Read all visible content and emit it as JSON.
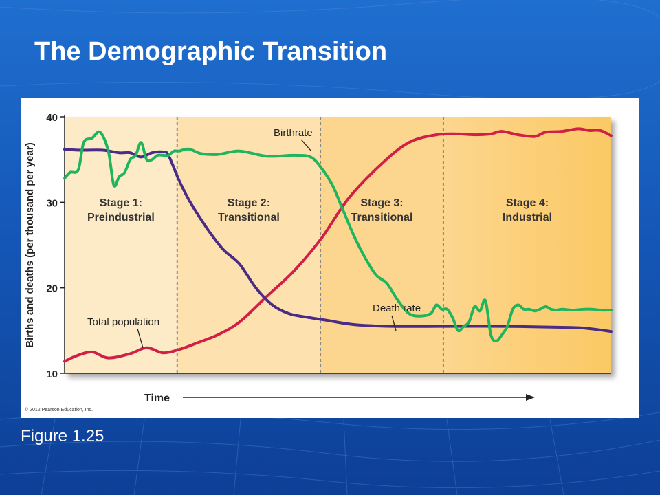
{
  "slide": {
    "title": "The Demographic Transition",
    "caption": "Figure 1.25"
  },
  "colors": {
    "background": "#1558b8",
    "stage1": "#fdebc8",
    "stage2": "#fde2b0",
    "stage3": "#fcd68f",
    "stage4": "#fbc964",
    "birthrate": "#1fb45e",
    "death_rate": "#4a2c86",
    "total_population": "#d11f46",
    "divider": "#8a8a8a"
  },
  "chart_data": {
    "type": "line",
    "title": "",
    "ylabel": "Births and deaths (per thousand per year)",
    "xlabel": "Time",
    "ylim": [
      10,
      40
    ],
    "yticks": [
      10,
      20,
      30,
      40
    ],
    "xlim": [
      0,
      100
    ],
    "grid": false,
    "copyright": "© 2012 Pearson Education, Inc.",
    "stages": [
      {
        "line1": "Stage 1:",
        "line2": "Preindustrial",
        "start": 0,
        "end": 20.6
      },
      {
        "line1": "Stage 2:",
        "line2": "Transitional",
        "start": 20.6,
        "end": 46.8
      },
      {
        "line1": "Stage 3:",
        "line2": "Transitional",
        "start": 46.8,
        "end": 69.3
      },
      {
        "line1": "Stage 4:",
        "line2": "Industrial",
        "start": 69.3,
        "end": 100
      }
    ],
    "series": [
      {
        "name": "Birthrate",
        "color": "#1fb45e",
        "x": [
          0,
          1,
          2.5,
          3.5,
          5,
          6.5,
          8,
          9,
          10,
          11,
          12,
          13,
          14,
          15,
          16,
          17,
          18,
          19,
          20,
          21,
          22,
          23,
          25,
          28,
          32,
          37,
          42,
          45,
          47,
          49,
          51,
          53,
          55,
          57,
          59,
          61,
          63,
          65,
          67,
          68,
          69,
          70,
          71,
          72,
          73,
          74,
          75,
          76,
          77,
          78,
          79,
          80,
          81,
          82,
          83,
          84,
          85,
          86,
          87,
          88,
          89,
          90,
          91,
          93,
          95,
          96.5,
          98,
          100
        ],
        "y": [
          32.8,
          33.5,
          33.8,
          37,
          37.5,
          38.2,
          36,
          32,
          33,
          33.5,
          35,
          35.5,
          37,
          35,
          35,
          35.5,
          35.5,
          35.5,
          36,
          36,
          36.2,
          36.2,
          35.7,
          35.6,
          36,
          35.4,
          35.5,
          35.3,
          34,
          32,
          29,
          26,
          23.5,
          21.5,
          20.5,
          18.5,
          17,
          16.7,
          17,
          18,
          17.5,
          17.5,
          16.5,
          15,
          15.5,
          16,
          17.8,
          17.3,
          18.5,
          14.5,
          13.8,
          14.5,
          15.5,
          17.5,
          18,
          17.5,
          17.5,
          17.3,
          17.5,
          17.8,
          17.5,
          17.4,
          17.5,
          17.4,
          17.5,
          17.5,
          17.4,
          17.4
        ]
      },
      {
        "name": "Death rate",
        "color": "#4a2c86",
        "x": [
          0,
          3,
          7,
          10,
          12,
          14,
          16,
          18,
          19,
          21,
          23,
          26,
          29,
          32,
          35,
          38,
          41,
          44,
          48,
          53,
          60,
          70,
          80,
          90,
          95,
          100
        ],
        "y": [
          36.2,
          36.1,
          36.1,
          35.8,
          35.8,
          35.3,
          35.8,
          35.9,
          35.5,
          32.5,
          30,
          27,
          24.5,
          22.8,
          20,
          18,
          17,
          16.6,
          16.2,
          15.7,
          15.5,
          15.5,
          15.5,
          15.4,
          15.3,
          14.9
        ]
      },
      {
        "name": "Total population",
        "color": "#d11f46",
        "x": [
          0,
          2,
          5,
          8,
          12,
          15,
          18,
          21,
          24,
          28,
          32,
          37,
          42,
          47,
          52,
          58,
          63,
          68,
          72,
          75,
          78,
          80,
          83,
          86,
          88,
          91,
          94,
          96,
          98,
          100
        ],
        "y": [
          11.4,
          12,
          12.5,
          11.8,
          12.3,
          13,
          12.4,
          12.8,
          13.5,
          14.5,
          16,
          19,
          22,
          25.8,
          30.5,
          34.5,
          37,
          37.9,
          38,
          37.9,
          38,
          38.3,
          37.9,
          37.7,
          38.2,
          38.3,
          38.6,
          38.4,
          38.4,
          37.8
        ]
      }
    ],
    "annotations": [
      {
        "text": "Birthrate",
        "series": "Birthrate"
      },
      {
        "text": "Death rate",
        "series": "Death rate"
      },
      {
        "text": "Total population",
        "series": "Total population"
      }
    ]
  }
}
